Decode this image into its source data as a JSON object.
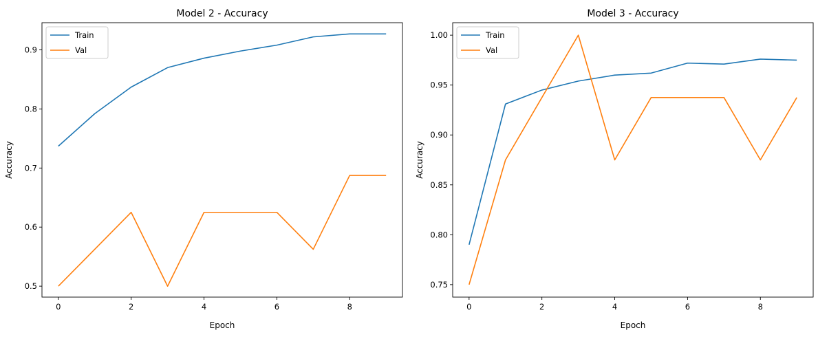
{
  "chart_data": [
    {
      "type": "line",
      "title": "Model 2 - Accuracy",
      "xlabel": "Epoch",
      "ylabel": "Accuracy",
      "xlim": [
        -0.45,
        9.45
      ],
      "ylim": [
        0.4815,
        0.946
      ],
      "xticks": [
        0,
        2,
        4,
        6,
        8
      ],
      "yticks": [
        0.5,
        0.6,
        0.7,
        0.8,
        0.9
      ],
      "ytick_labels": [
        "0.5",
        "0.6",
        "0.7",
        "0.8",
        "0.9"
      ],
      "legend_position": "top-left",
      "grid": false,
      "x": [
        0,
        1,
        2,
        3,
        4,
        5,
        6,
        7,
        8,
        9
      ],
      "series": [
        {
          "name": "Train",
          "color": "#1f77b4",
          "values": [
            0.737,
            0.792,
            0.837,
            0.87,
            0.886,
            0.898,
            0.908,
            0.922,
            0.927,
            0.927
          ]
        },
        {
          "name": "Val",
          "color": "#ff7f0e",
          "values": [
            0.5,
            0.5625,
            0.625,
            0.5,
            0.625,
            0.625,
            0.625,
            0.5625,
            0.6875,
            0.6875
          ]
        }
      ]
    },
    {
      "type": "line",
      "title": "Model 3 - Accuracy",
      "xlabel": "Epoch",
      "ylabel": "Accuracy",
      "xlim": [
        -0.45,
        9.45
      ],
      "ylim": [
        0.7375,
        1.0125
      ],
      "xticks": [
        0,
        2,
        4,
        6,
        8
      ],
      "yticks": [
        0.75,
        0.8,
        0.85,
        0.9,
        0.95,
        1.0
      ],
      "ytick_labels": [
        "0.75",
        "0.80",
        "0.85",
        "0.90",
        "0.95",
        "1.00"
      ],
      "legend_position": "top-left",
      "grid": false,
      "x": [
        0,
        1,
        2,
        3,
        4,
        5,
        6,
        7,
        8,
        9
      ],
      "series": [
        {
          "name": "Train",
          "color": "#1f77b4",
          "values": [
            0.79,
            0.931,
            0.945,
            0.954,
            0.96,
            0.962,
            0.972,
            0.971,
            0.976,
            0.975
          ]
        },
        {
          "name": "Val",
          "color": "#ff7f0e",
          "values": [
            0.75,
            0.875,
            0.9375,
            1.0,
            0.875,
            0.9375,
            0.9375,
            0.9375,
            0.875,
            0.9375
          ]
        }
      ]
    }
  ]
}
